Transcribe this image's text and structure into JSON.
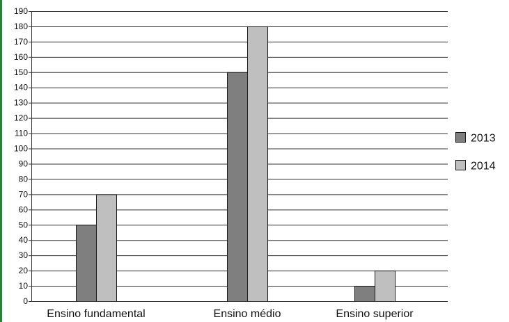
{
  "chart_data": {
    "type": "bar",
    "title": "",
    "xlabel": "",
    "ylabel": "",
    "categories": [
      "Ensino fundamental",
      "Ensino médio",
      "Ensino superior"
    ],
    "series": [
      {
        "name": "2013",
        "values": [
          50,
          150,
          10
        ],
        "color": "#7f7f7f"
      },
      {
        "name": "2014",
        "values": [
          70,
          180,
          20
        ],
        "color": "#bfbfbf"
      }
    ],
    "ylim": [
      0,
      190
    ],
    "yticks": [
      0,
      10,
      20,
      30,
      40,
      50,
      60,
      70,
      80,
      90,
      100,
      110,
      120,
      130,
      140,
      150,
      160,
      170,
      180,
      190
    ],
    "grid": true,
    "legend_position": "right"
  }
}
